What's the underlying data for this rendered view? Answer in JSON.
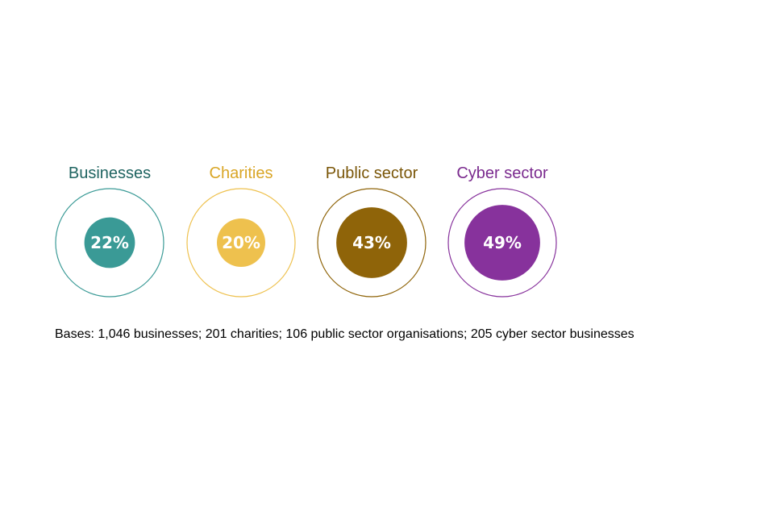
{
  "chart_data": {
    "type": "proportional-circles",
    "title": "",
    "unit": "%",
    "categories": [
      "Businesses",
      "Charities",
      "Public sector",
      "Cyber sector"
    ],
    "values": [
      22,
      20,
      43,
      49
    ],
    "value_labels": [
      "22%",
      "20%",
      "43%",
      "49%"
    ],
    "colors": [
      "#3a9a96",
      "#eec14e",
      "#8f6409",
      "#87329c"
    ],
    "label_colors": [
      "#1f6461",
      "#d9a626",
      "#7a5608",
      "#7a2a8e"
    ],
    "max_value": 100
  },
  "footnote": "Bases: 1,046 businesses; 201 charities; 106 public sector organisations; 205 cyber sector businesses"
}
